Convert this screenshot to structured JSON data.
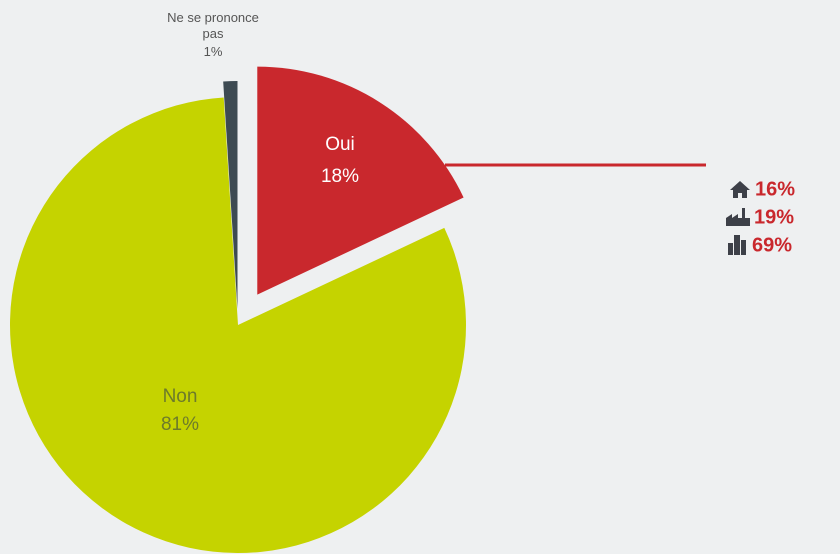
{
  "chart_data": {
    "type": "pie",
    "categories": [
      "Oui",
      "Non",
      "Ne se prononce pas"
    ],
    "values": [
      18,
      81,
      1
    ],
    "value_labels": [
      "18%",
      "81%",
      "1%"
    ],
    "colors": [
      "#c9282d",
      "#c5d300",
      "#3d4a52"
    ],
    "breakdown": {
      "values": [
        16,
        19,
        69
      ],
      "value_labels": [
        "16%",
        "19%",
        "69%"
      ],
      "color": "#c9282d"
    }
  }
}
